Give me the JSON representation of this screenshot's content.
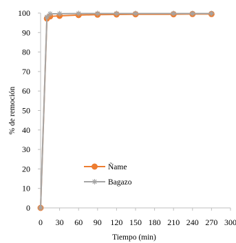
{
  "chart_data": {
    "type": "line",
    "title": "",
    "xlabel": "Tiempo (min)",
    "ylabel": "% de remoción",
    "xlim": [
      0,
      300
    ],
    "ylim": [
      0,
      100
    ],
    "xticks": [
      0,
      30,
      60,
      90,
      120,
      150,
      180,
      210,
      240,
      270,
      300
    ],
    "yticks": [
      0,
      10,
      20,
      30,
      40,
      50,
      60,
      70,
      80,
      90,
      100
    ],
    "grid": false,
    "legend_position": "lower-center",
    "series": [
      {
        "name": "Ñame",
        "color": "#ED7D31",
        "marker": "circle",
        "x": [
          0,
          10,
          15,
          30,
          60,
          90,
          120,
          150,
          210,
          240,
          270
        ],
        "y": [
          0,
          97.2,
          98.3,
          98.6,
          99.0,
          99.2,
          99.3,
          99.4,
          99.4,
          99.5,
          99.5
        ]
      },
      {
        "name": "Bagazo",
        "color": "#A5A5A5",
        "marker": "asterisk",
        "x": [
          0,
          10,
          15,
          30,
          60,
          90,
          120,
          150,
          210,
          240,
          270
        ],
        "y": [
          0,
          98.0,
          99.6,
          99.7,
          99.8,
          99.8,
          99.8,
          99.8,
          99.8,
          99.8,
          99.8
        ]
      }
    ]
  }
}
